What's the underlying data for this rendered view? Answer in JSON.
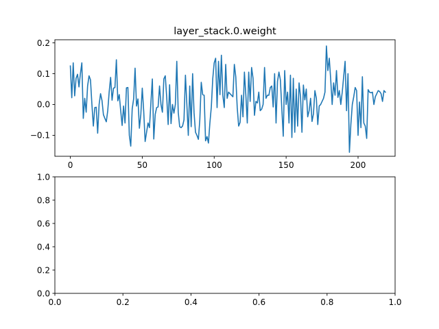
{
  "chart_data": [
    {
      "type": "line",
      "title": "layer_stack.0.weight",
      "xlabel": "",
      "ylabel": "",
      "xlim": [
        -10.75,
        225.75
      ],
      "ylim": [
        -0.168,
        0.21
      ],
      "xticks": [
        0,
        50,
        100,
        150,
        200
      ],
      "xtick_labels": [
        "0",
        "50",
        "100",
        "150",
        "200"
      ],
      "yticks": [
        -0.1,
        0.0,
        0.1,
        0.2
      ],
      "ytick_labels": [
        "−0.1",
        "0.0",
        "0.1",
        "0.2"
      ],
      "grid": false,
      "series": [
        {
          "color": "#1f77b4",
          "x_start": 0,
          "x_step": 1,
          "values": [
            0.125,
            0.022,
            0.135,
            0.028,
            0.085,
            0.098,
            0.057,
            0.1,
            0.135,
            -0.045,
            0.02,
            -0.025,
            0.06,
            0.093,
            0.08,
            0.0,
            -0.07,
            -0.01,
            -0.009,
            -0.093,
            0.0,
            0.035,
            0.013,
            -0.033,
            -0.045,
            -0.056,
            -0.02,
            0.041,
            0.088,
            0.014,
            0.053,
            0.055,
            0.145,
            0.012,
            0.032,
            -0.02,
            -0.068,
            -0.005,
            -0.06,
            0.054,
            0.055,
            -0.1,
            -0.135,
            -0.014,
            0.018,
            0.118,
            -0.005,
            0.018,
            -0.077,
            -0.032,
            0.053,
            -0.022,
            -0.12,
            -0.09,
            -0.06,
            -0.075,
            0.005,
            0.083,
            -0.112,
            -0.032,
            -0.01,
            -0.008,
            0.06,
            0.0,
            -0.025,
            0.083,
            0.093,
            0.023,
            -0.065,
            0.064,
            -0.062,
            0.0,
            -0.028,
            0.0,
            0.14,
            -0.025,
            -0.072,
            -0.075,
            -0.07,
            -0.05,
            0.095,
            0.0,
            -0.1,
            0.06,
            -0.072,
            0.1,
            -0.027,
            -0.09,
            -0.1,
            -0.113,
            -0.05,
            0.072,
            0.032,
            0.03,
            -0.118,
            -0.104,
            -0.125,
            -0.06,
            -0.008,
            0.084,
            0.135,
            0.15,
            -0.01,
            0.14,
            0.032,
            0.16,
            0.03,
            -0.01,
            0.13,
            0.02,
            0.04,
            0.035,
            0.03,
            0.025,
            0.13,
            0.09,
            -0.01,
            -0.07,
            -0.058,
            0.03,
            -0.04,
            0.105,
            0.03,
            -0.06,
            0.105,
            0.01,
            0.12,
            0.085,
            -0.035,
            0.01,
            0.005,
            0.04,
            -0.02,
            -0.015,
            0.0,
            0.12,
            0.02,
            0.03,
            0.03,
            0.055,
            0.06,
            -0.008,
            0.1,
            -0.06,
            0.075,
            0.105,
            0.08,
            -0.013,
            -0.103,
            0.11,
            0.0,
            0.04,
            -0.06,
            0.095,
            -0.107,
            0.085,
            -0.09,
            0.05,
            -0.07,
            0.07,
            0.025,
            -0.09,
            0.063,
            0.015,
            0.05,
            -0.04,
            -0.02,
            0.02,
            -0.055,
            -0.03,
            0.045,
            0.02,
            -0.065,
            -0.005,
            0.0,
            0.01,
            0.02,
            0.04,
            0.19,
            0.11,
            0.15,
            0.08,
            0.0,
            0.07,
            0.03,
            0.11,
            0.023,
            0.045,
            -0.0,
            0.04,
            0.09,
            0.14,
            -0.02,
            0.1,
            -0.155,
            -0.065,
            0.0,
            0.025,
            0.055,
            0.045,
            -0.1,
            0.008,
            -0.075,
            0.09,
            -0.06,
            -0.07,
            -0.11,
            0.048,
            0.04,
            0.038,
            0.04,
            -0.0,
            0.025,
            0.035,
            0.045,
            0.042,
            0.035,
            0.01,
            0.045,
            0.04
          ]
        }
      ]
    },
    {
      "type": "line",
      "title": "",
      "xlabel": "",
      "ylabel": "",
      "xlim": [
        0.0,
        1.0
      ],
      "ylim": [
        0.0,
        1.0
      ],
      "xticks": [
        0.0,
        0.2,
        0.4,
        0.6,
        0.8,
        1.0
      ],
      "xtick_labels": [
        "0.0",
        "0.2",
        "0.4",
        "0.6",
        "0.8",
        "1.0"
      ],
      "yticks": [
        0.0,
        0.2,
        0.4,
        0.6,
        0.8,
        1.0
      ],
      "ytick_labels": [
        "0.0",
        "0.2",
        "0.4",
        "0.6",
        "0.8",
        "1.0"
      ],
      "grid": false,
      "series": []
    }
  ]
}
